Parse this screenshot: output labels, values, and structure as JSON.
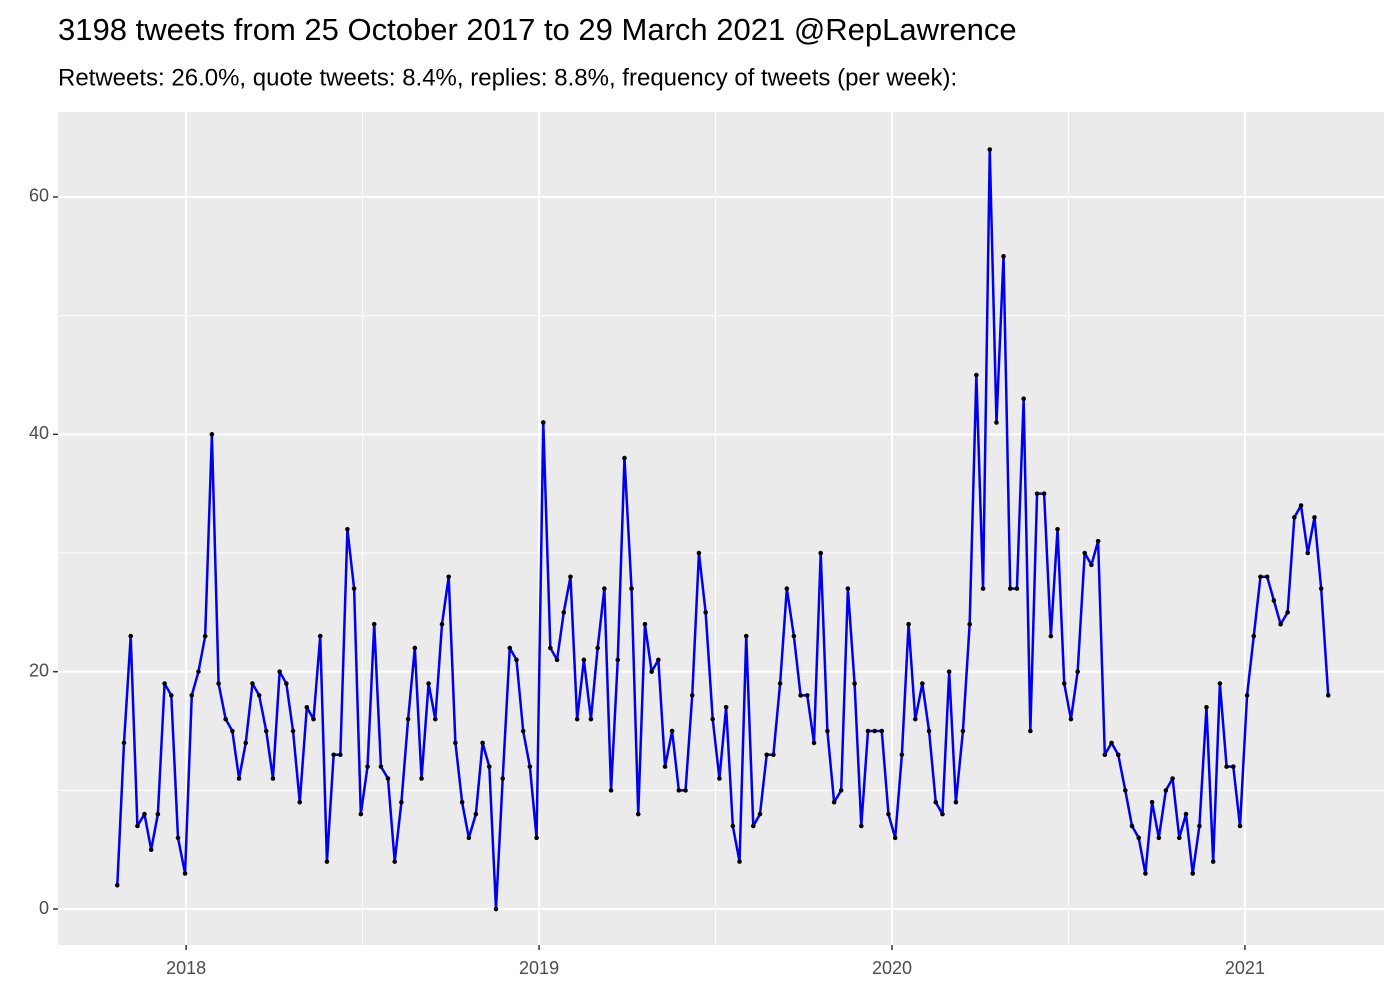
{
  "chart_data": {
    "type": "line",
    "title": "3198 tweets from 25 October 2017 to 29 March 2021 @RepLawrence",
    "subtitle": "Retweets: 26.0%, quote tweets: 8.4%, replies: 8.8%, frequency of tweets (per week):",
    "x": [
      2017.805,
      2017.824,
      2017.843,
      2017.862,
      2017.882,
      2017.901,
      2017.92,
      2017.939,
      2017.958,
      2017.977,
      2017.997,
      2018.016,
      2018.035,
      2018.054,
      2018.073,
      2018.092,
      2018.112,
      2018.131,
      2018.15,
      2018.169,
      2018.188,
      2018.207,
      2018.227,
      2018.246,
      2018.265,
      2018.284,
      2018.303,
      2018.322,
      2018.342,
      2018.361,
      2018.38,
      2018.399,
      2018.418,
      2018.437,
      2018.457,
      2018.476,
      2018.495,
      2018.514,
      2018.533,
      2018.552,
      2018.572,
      2018.591,
      2018.61,
      2018.629,
      2018.648,
      2018.667,
      2018.687,
      2018.706,
      2018.725,
      2018.744,
      2018.763,
      2018.782,
      2018.801,
      2018.821,
      2018.84,
      2018.859,
      2018.878,
      2018.897,
      2018.917,
      2018.936,
      2018.955,
      2018.974,
      2018.993,
      2019.012,
      2019.032,
      2019.051,
      2019.07,
      2019.089,
      2019.108,
      2019.127,
      2019.147,
      2019.166,
      2019.185,
      2019.204,
      2019.223,
      2019.242,
      2019.262,
      2019.281,
      2019.3,
      2019.319,
      2019.338,
      2019.357,
      2019.377,
      2019.396,
      2019.415,
      2019.434,
      2019.453,
      2019.472,
      2019.492,
      2019.511,
      2019.53,
      2019.549,
      2019.568,
      2019.587,
      2019.607,
      2019.626,
      2019.645,
      2019.664,
      2019.683,
      2019.702,
      2019.722,
      2019.741,
      2019.76,
      2019.779,
      2019.798,
      2019.817,
      2019.836,
      2019.856,
      2019.875,
      2019.894,
      2019.913,
      2019.932,
      2019.951,
      2019.971,
      2019.99,
      2020.009,
      2020.028,
      2020.047,
      2020.066,
      2020.086,
      2020.105,
      2020.124,
      2020.143,
      2020.162,
      2020.181,
      2020.201,
      2020.22,
      2020.239,
      2020.258,
      2020.277,
      2020.296,
      2020.316,
      2020.335,
      2020.354,
      2020.373,
      2020.392,
      2020.411,
      2020.431,
      2020.45,
      2020.469,
      2020.488,
      2020.507,
      2020.526,
      2020.546,
      2020.565,
      2020.584,
      2020.603,
      2020.622,
      2020.641,
      2020.661,
      2020.68,
      2020.699,
      2020.718,
      2020.737,
      2020.756,
      2020.776,
      2020.795,
      2020.814,
      2020.833,
      2020.852,
      2020.871,
      2020.891,
      2020.91,
      2020.929,
      2020.948,
      2020.967,
      2020.986,
      2021.006,
      2021.025,
      2021.044,
      2021.063,
      2021.082,
      2021.101,
      2021.121,
      2021.14,
      2021.159,
      2021.178,
      2021.197,
      2021.216,
      2021.236
    ],
    "series": [
      {
        "color": "#0000ee",
        "point_color": "#000000",
        "values": [
          2,
          14,
          23,
          7,
          8,
          5,
          8,
          19,
          18,
          6,
          3,
          18,
          20,
          23,
          40,
          19,
          16,
          15,
          11,
          14,
          19,
          18,
          15,
          11,
          20,
          19,
          15,
          9,
          17,
          16,
          23,
          4,
          13,
          13,
          32,
          27,
          8,
          12,
          24,
          12,
          11,
          4,
          9,
          16,
          22,
          11,
          19,
          16,
          24,
          28,
          14,
          9,
          6,
          8,
          14,
          12,
          0,
          11,
          22,
          21,
          15,
          12,
          6,
          41,
          22,
          21,
          25,
          28,
          16,
          21,
          16,
          22,
          27,
          10,
          21,
          38,
          27,
          8,
          24,
          20,
          21,
          12,
          15,
          10,
          10,
          18,
          30,
          25,
          16,
          11,
          17,
          7,
          4,
          23,
          7,
          8,
          13,
          13,
          19,
          27,
          23,
          18,
          18,
          14,
          30,
          15,
          9,
          10,
          27,
          19,
          7,
          15,
          15,
          15,
          8,
          6,
          13,
          24,
          16,
          19,
          15,
          9,
          8,
          20,
          9,
          15,
          24,
          45,
          27,
          64,
          41,
          55,
          27,
          27,
          43,
          15,
          35,
          35,
          23,
          32,
          19,
          16,
          20,
          30,
          29,
          31,
          13,
          14,
          13,
          10,
          7,
          6,
          3,
          9,
          6,
          10,
          11,
          6,
          8,
          3,
          7,
          17,
          4,
          19,
          12,
          12,
          7,
          18,
          23,
          28,
          28,
          26,
          24,
          25,
          33,
          34,
          30,
          33,
          27,
          18
        ]
      }
    ],
    "xlim": [
      2017.637,
      2021.394
    ],
    "xticks": [
      2018,
      2019,
      2020,
      2021
    ],
    "x_minor_ticks": [
      2018.5,
      2019.5,
      2020.5
    ],
    "ylim": [
      -3.03,
      67.16
    ],
    "yticks": [
      0,
      20,
      40,
      60
    ],
    "y_minor_ticks": [
      10,
      30,
      50
    ],
    "grid": true,
    "panel_color": "#ebebeb"
  }
}
